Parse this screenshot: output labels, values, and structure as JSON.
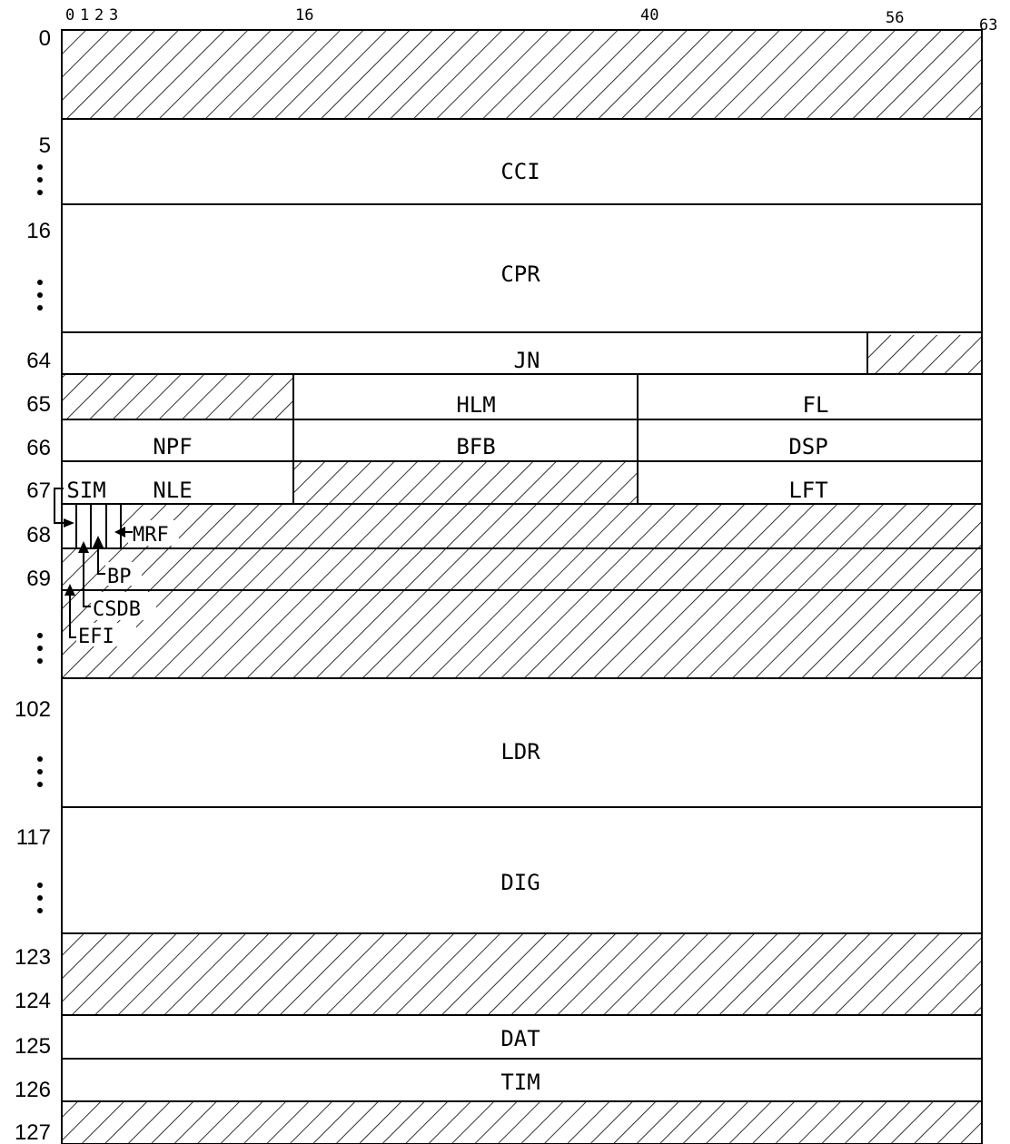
{
  "bit_ticks": [
    "0",
    "1",
    "2",
    "3",
    "16",
    "40",
    "56",
    "63"
  ],
  "word_numbers": {
    "w0": "0",
    "w5": "5",
    "w16": "16",
    "w64": "64",
    "w65": "65",
    "w66": "66",
    "w67": "67",
    "w68": "68",
    "w69": "69",
    "w102": "102",
    "w117": "117",
    "w123": "123",
    "w124": "124",
    "w125": "125",
    "w126": "126",
    "w127": "127"
  },
  "fields": {
    "cci": "CCI",
    "cpr": "CPR",
    "jn": "JN",
    "hlm": "HLM",
    "fl": "FL",
    "npf": "NPF",
    "bfb": "BFB",
    "dsp": "DSP",
    "sim": "SIM",
    "nle": "NLE",
    "lft": "LFT",
    "ldr": "LDR",
    "dig": "DIG",
    "dat": "DAT",
    "tim": "TIM"
  },
  "flags": {
    "mrf": "MRF",
    "bp": "BP",
    "csdb": "CSDB",
    "efi": "EFI"
  },
  "colors": {
    "ink": "#000000",
    "paper": "#ffffff"
  }
}
